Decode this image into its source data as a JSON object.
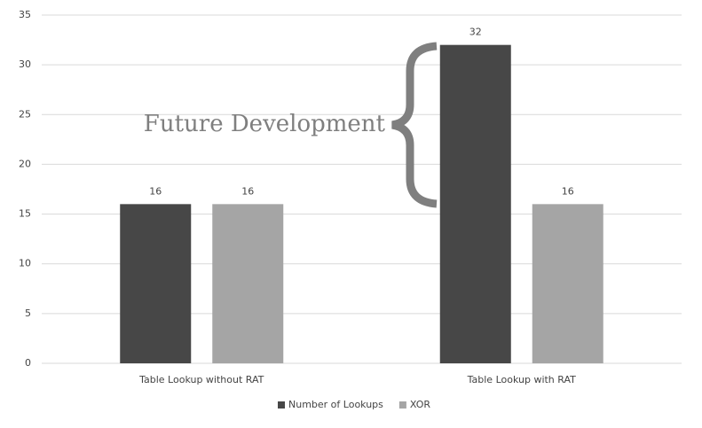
{
  "chart_data": {
    "type": "bar",
    "categories": [
      "Table Lookup without RAT",
      "Table Lookup with RAT"
    ],
    "series": [
      {
        "name": "Number of Lookups",
        "color": "#474747",
        "values": [
          16,
          32
        ]
      },
      {
        "name": "XOR",
        "color": "#a5a5a5",
        "values": [
          16,
          16
        ]
      }
    ],
    "ylim": [
      0,
      35
    ],
    "yticks": [
      0,
      5,
      10,
      15,
      20,
      25,
      30,
      35
    ],
    "grid": true,
    "legend": "bottom",
    "annotation": "Future Development"
  }
}
